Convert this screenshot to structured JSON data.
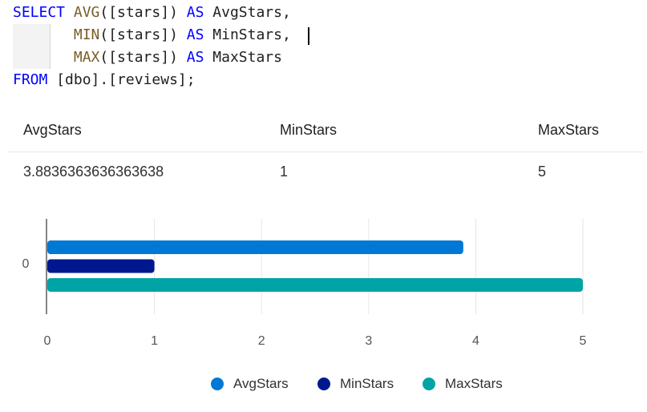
{
  "editor": {
    "lines": [
      [
        {
          "t": "kw",
          "v": "SELECT "
        },
        {
          "t": "fn",
          "v": "AVG"
        },
        {
          "t": "tx",
          "v": "([stars]) "
        },
        {
          "t": "kw",
          "v": "AS"
        },
        {
          "t": "tx",
          "v": " AvgStars,"
        }
      ],
      [
        {
          "t": "tx",
          "v": "       "
        },
        {
          "t": "fn",
          "v": "MIN"
        },
        {
          "t": "tx",
          "v": "([stars]) "
        },
        {
          "t": "kw",
          "v": "AS"
        },
        {
          "t": "tx",
          "v": " MinStars,"
        }
      ],
      [
        {
          "t": "tx",
          "v": "       "
        },
        {
          "t": "fn",
          "v": "MAX"
        },
        {
          "t": "tx",
          "v": "([stars]) "
        },
        {
          "t": "kw",
          "v": "AS"
        },
        {
          "t": "tx",
          "v": " MaxStars"
        }
      ],
      [
        {
          "t": "kw",
          "v": "FROM"
        },
        {
          "t": "tx",
          "v": " [dbo].[reviews];"
        }
      ]
    ],
    "colors": {
      "keyword": "#0000ff",
      "function": "#795e26",
      "text": "#1f1f1f"
    }
  },
  "results": {
    "columns": [
      "AvgStars",
      "MinStars",
      "MaxStars"
    ],
    "rows": [
      [
        "3.8836363636363638",
        "1",
        "5"
      ]
    ]
  },
  "chart_data": {
    "type": "bar",
    "orientation": "horizontal",
    "categories": [
      "0"
    ],
    "series": [
      {
        "name": "AvgStars",
        "values": [
          3.8836363636363638
        ],
        "color": "#0078d4"
      },
      {
        "name": "MinStars",
        "values": [
          1
        ],
        "color": "#00188f"
      },
      {
        "name": "MaxStars",
        "values": [
          5
        ],
        "color": "#00a4a7"
      }
    ],
    "xticks": [
      "0",
      "1",
      "2",
      "3",
      "4",
      "5"
    ],
    "xlim": [
      0,
      5
    ],
    "grid": true,
    "legend": "bottom"
  }
}
